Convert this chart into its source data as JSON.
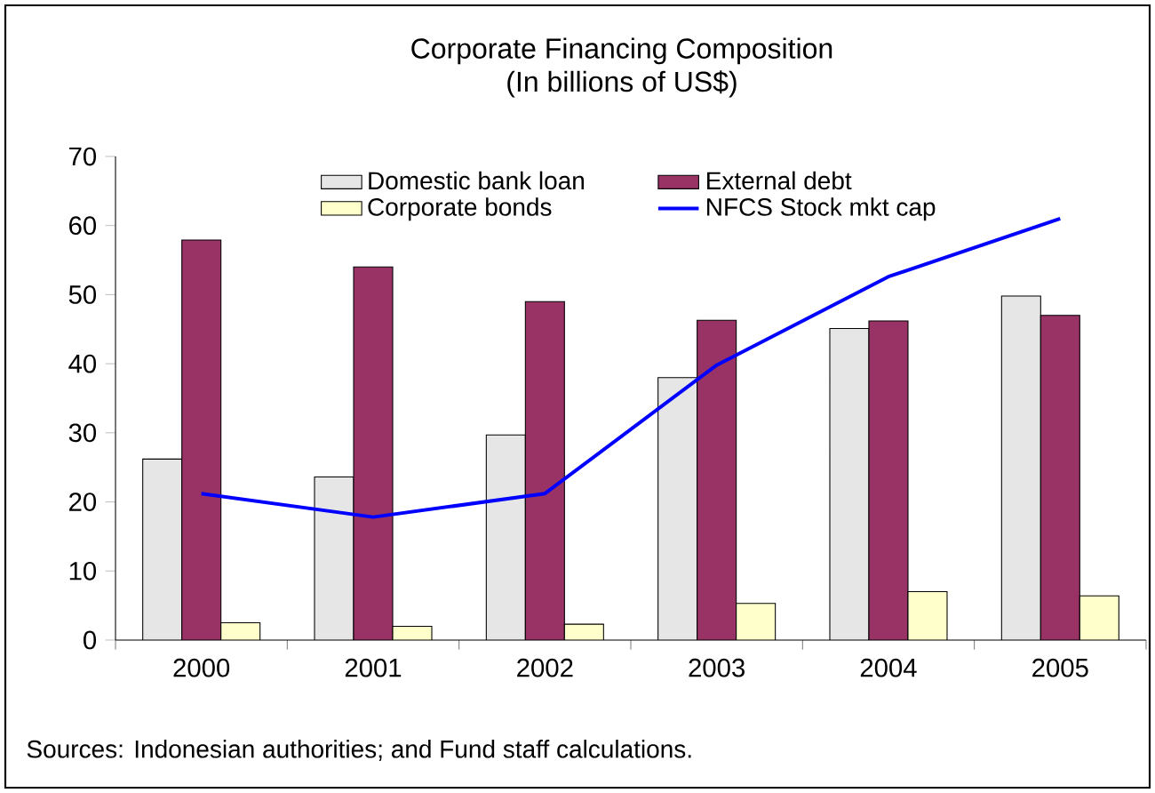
{
  "chart_data": {
    "type": "bar",
    "title": "Corporate Financing Composition",
    "subtitle": "(In billions of US$)",
    "categories": [
      "2000",
      "2001",
      "2002",
      "2003",
      "2004",
      "2005"
    ],
    "series": [
      {
        "name": "Domestic bank loan",
        "color": "#e6e6e6",
        "values": [
          26.2,
          23.6,
          29.7,
          38,
          45.1,
          49.8
        ]
      },
      {
        "name": "External debt",
        "color": "#993366",
        "values": [
          57.9,
          54,
          49,
          46.3,
          46.2,
          47
        ]
      },
      {
        "name": "Corporate bonds",
        "color": "#ffffcc",
        "values": [
          2.5,
          2,
          2.3,
          5.3,
          7,
          6.4
        ]
      },
      {
        "name": "NFCS Stock mkt cap",
        "type": "line",
        "color": "#0000ff",
        "values": [
          21.2,
          17.8,
          21.2,
          39.8,
          52.6,
          61
        ]
      }
    ],
    "ylim": [
      0,
      70
    ],
    "yticks": [
      0,
      10,
      20,
      30,
      40,
      50,
      60,
      70
    ],
    "grid": false,
    "legend": "top",
    "marker": "none",
    "line_style": "solid",
    "annotations": [
      "Sources: Indonesian authorities; and Fund staff calculations."
    ]
  }
}
